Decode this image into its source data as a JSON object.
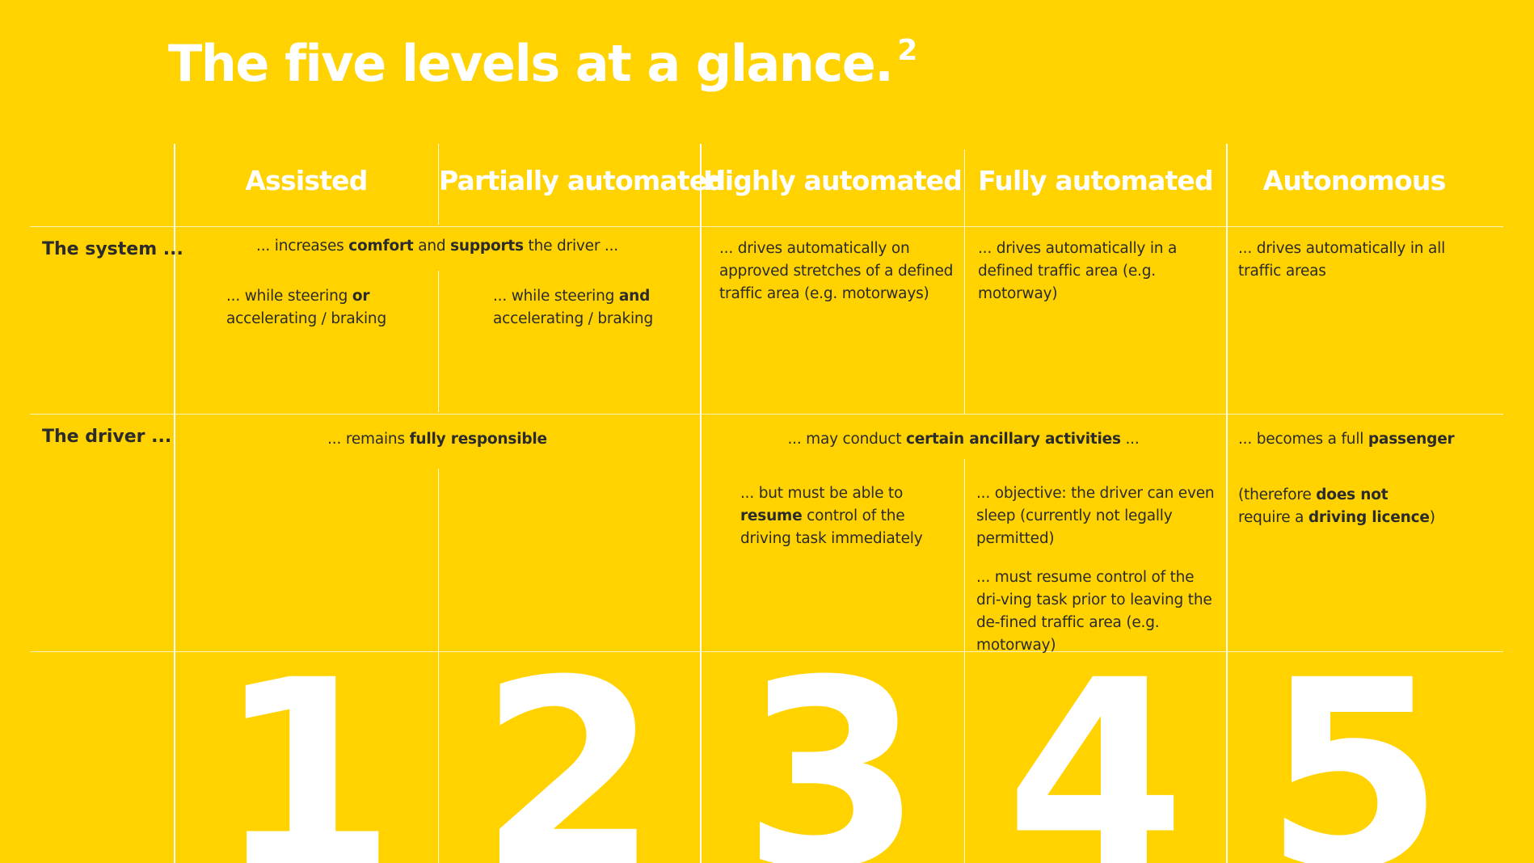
{
  "title": "The five levels at a glance.",
  "title_sup": "2",
  "columns": [
    "Assisted",
    "Partially automated",
    "Highly automated",
    "Fully automated",
    "Autonomous"
  ],
  "rows": {
    "system_label": "The system ...",
    "driver_label": "The driver ..."
  },
  "system": {
    "shared_12": {
      "pre": "... increases ",
      "b1": "comfort",
      "mid": " and ",
      "b2": "supports",
      "post": " the driver ..."
    },
    "l1": {
      "pre": "... while steering ",
      "b": "or",
      "post": "accelerating / braking"
    },
    "l2": {
      "pre": "... while steering ",
      "b": "and",
      "post": "accelerating / braking"
    },
    "l3": "... drives automatically on approved stretches of a defined traffic area (e.g. motorways)",
    "l4": "... drives automatically in a defined traffic area (e.g. motorway)",
    "l5": "... drives automatically in all traffic areas"
  },
  "driver": {
    "shared_12": {
      "pre": "... remains ",
      "b": "fully responsible"
    },
    "shared_34": {
      "pre": "... may conduct ",
      "b": "certain ancillary activities",
      "post": " ..."
    },
    "l3": {
      "pre": "... but must be able to ",
      "b": "resume",
      "post": " control of the driving task immediately"
    },
    "l4a": "... objective: the driver can even sleep (currently not legally permitted)",
    "l4b": "... must resume control of the dri-ving task prior to leaving the de-fined traffic area (e.g. motorway)",
    "l5a": {
      "pre": "... becomes a full ",
      "b": "passenger"
    },
    "l5b": {
      "pre": "(therefore ",
      "b1": "does not",
      "mid": " require a ",
      "b2": "driving licence",
      "post": ")"
    }
  },
  "numbers": [
    "1",
    "2",
    "3",
    "4",
    "5"
  ],
  "colors": {
    "background": "#FFD200",
    "text": "#2b2b2b",
    "accent": "#FFFFFF"
  }
}
